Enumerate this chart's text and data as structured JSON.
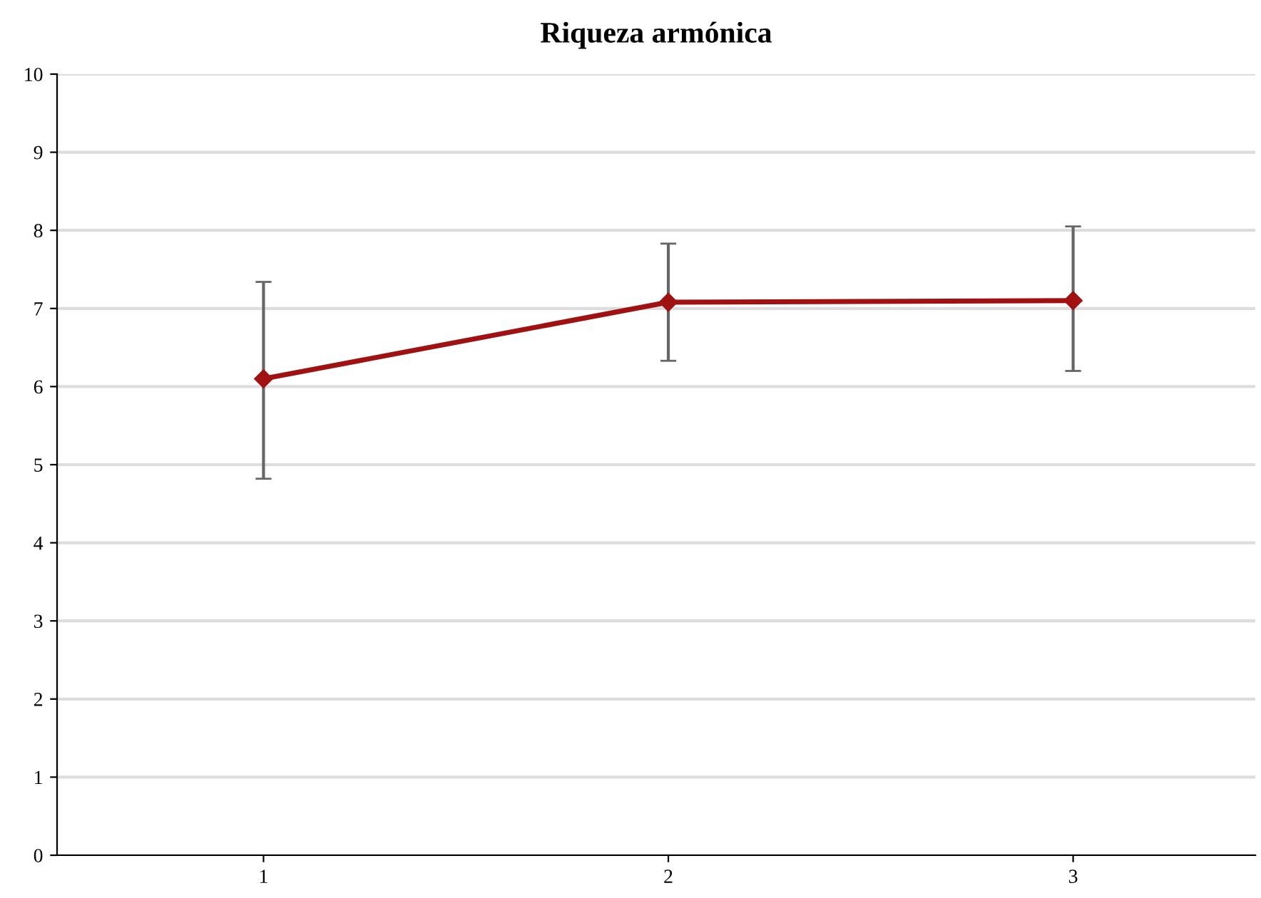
{
  "chart_data": {
    "type": "line",
    "title": "Riqueza armónica",
    "categories": [
      "1",
      "2",
      "3"
    ],
    "series": [
      {
        "color": "#a01212",
        "values": [
          6.1,
          7.08,
          7.1
        ],
        "errors": [
          [
            4.82,
            7.34
          ],
          [
            6.33,
            7.83
          ],
          [
            6.2,
            8.05
          ]
        ]
      }
    ],
    "ylim": [
      0,
      10
    ],
    "yticks": [
      0,
      1,
      2,
      3,
      4,
      5,
      6,
      7,
      8,
      9,
      10
    ],
    "grid": "y",
    "marker": "diamond",
    "line_style": "solid",
    "legend": false
  }
}
